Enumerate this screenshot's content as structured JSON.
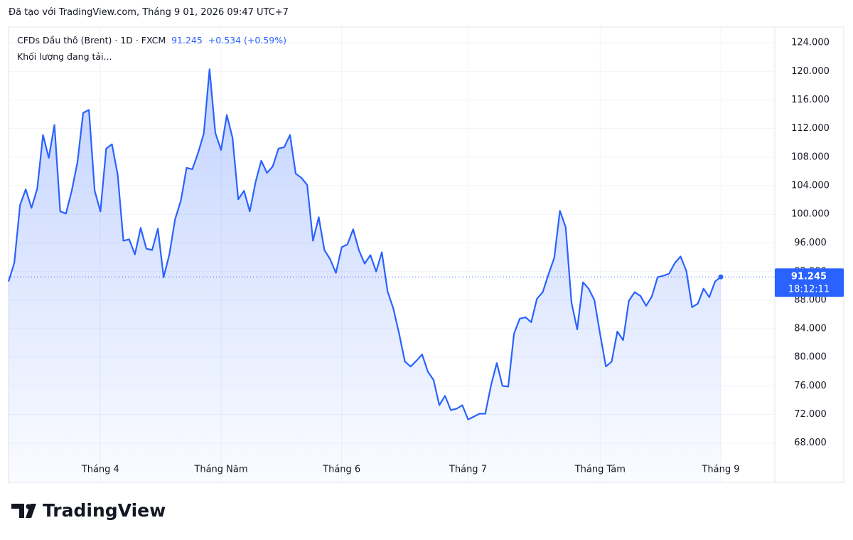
{
  "credit": "Đã tạo với TradingView.com, Tháng 9 01, 2026 09:47 UTC+7",
  "brand": "TradingView",
  "chart_data": {
    "type": "area",
    "header": {
      "symbol": "CFDs Dầu thô (Brent) · 1D · FXCM",
      "last": "91.245",
      "change": "+0.534 (+0.59%)",
      "volume": "Khối lượng đang tải...",
      "countdown": "18:12:11"
    },
    "categories": [
      null,
      null,
      null,
      null,
      null,
      null,
      null,
      null,
      null,
      null,
      null,
      null,
      null,
      null,
      null,
      null,
      "Tháng 4",
      null,
      null,
      null,
      null,
      null,
      null,
      null,
      null,
      null,
      null,
      null,
      null,
      null,
      null,
      null,
      null,
      null,
      null,
      null,
      null,
      "Tháng Năm",
      null,
      null,
      null,
      null,
      null,
      null,
      null,
      null,
      null,
      null,
      null,
      null,
      null,
      null,
      null,
      null,
      null,
      null,
      null,
      null,
      "Tháng 6",
      null,
      null,
      null,
      null,
      null,
      null,
      null,
      null,
      null,
      null,
      null,
      null,
      null,
      null,
      null,
      null,
      null,
      null,
      null,
      null,
      null,
      "Tháng 7",
      null,
      null,
      null,
      null,
      null,
      null,
      null,
      null,
      null,
      null,
      null,
      null,
      null,
      null,
      null,
      null,
      null,
      null,
      null,
      null,
      null,
      null,
      "Tháng Tám",
      null,
      null,
      null,
      null,
      null,
      null,
      null,
      null,
      null,
      null,
      null,
      null,
      null,
      null,
      null,
      null,
      null,
      null,
      null,
      null,
      "Tháng 9"
    ],
    "series": [
      {
        "name": "CFDs Dầu thô (Brent)",
        "color": "#2962ff",
        "values": [
          90.6,
          93.2,
          101.3,
          103.5,
          100.9,
          103.6,
          111.1,
          107.9,
          112.5,
          100.4,
          100.1,
          103.3,
          107.3,
          114.2,
          114.6,
          103.3,
          100.4,
          109.2,
          109.8,
          105.6,
          96.3,
          96.5,
          94.4,
          98.1,
          95.2,
          95.0,
          98.0,
          91.2,
          94.4,
          99.3,
          101.9,
          106.5,
          106.3,
          108.6,
          111.3,
          120.3,
          111.4,
          109.0,
          113.9,
          110.7,
          102.1,
          103.3,
          100.4,
          104.5,
          107.5,
          105.8,
          106.7,
          109.2,
          109.4,
          111.1,
          105.7,
          105.1,
          104.1,
          96.3,
          99.6,
          95.0,
          93.7,
          91.8,
          95.4,
          95.8,
          97.9,
          95.0,
          93.1,
          94.3,
          92.0,
          94.7,
          89.2,
          86.8,
          83.3,
          79.4,
          78.7,
          79.5,
          80.4,
          78.0,
          76.8,
          73.3,
          74.6,
          72.6,
          72.8,
          73.3,
          71.3,
          71.7,
          72.1,
          72.1,
          76.1,
          79.2,
          76.0,
          75.9,
          83.3,
          85.4,
          85.6,
          84.9,
          88.2,
          89.1,
          91.6,
          93.9,
          100.5,
          98.2,
          87.7,
          83.9,
          90.5,
          89.6,
          88.0,
          83.2,
          78.7,
          79.4,
          83.6,
          82.4,
          87.9,
          89.1,
          88.6,
          87.2,
          88.5,
          91.2,
          91.4,
          91.7,
          93.2,
          94.1,
          92.1,
          87.0,
          87.5,
          89.6,
          88.4,
          90.6,
          91.245
        ]
      }
    ],
    "ylim": [
      62.5,
      126.2
    ],
    "yticks": [
      {
        "value": 68,
        "label": "68.000"
      },
      {
        "value": 72,
        "label": "72.000"
      },
      {
        "value": 76,
        "label": "76.000"
      },
      {
        "value": 80,
        "label": "80.000"
      },
      {
        "value": 84,
        "label": "84.000"
      },
      {
        "value": 88,
        "label": "88.000"
      },
      {
        "value": 92,
        "label": "92.000"
      },
      {
        "value": 96,
        "label": "96.000"
      },
      {
        "value": 100,
        "label": "100.000"
      },
      {
        "value": 104,
        "label": "104.000"
      },
      {
        "value": 108,
        "label": "108.000"
      },
      {
        "value": 112,
        "label": "112.000"
      },
      {
        "value": 116,
        "label": "116.000"
      },
      {
        "value": 120,
        "label": "120.000"
      },
      {
        "value": 124,
        "label": "124.000"
      }
    ],
    "grid": true
  }
}
